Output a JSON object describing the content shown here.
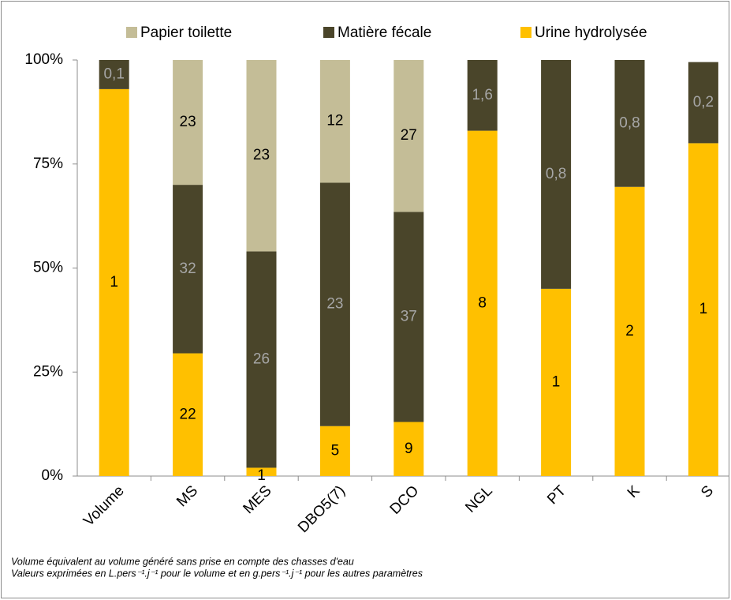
{
  "chart_data": {
    "type": "bar",
    "stacked": true,
    "categories": [
      "Volume",
      "MS",
      "MES",
      "DBO5(7)",
      "DCO",
      "NGL",
      "PT",
      "K",
      "S"
    ],
    "series": [
      {
        "name": "Papier toilette",
        "color": "#c4bd97",
        "label_color": "#000000",
        "values": [
          null,
          30,
          46,
          29.5,
          36.5,
          null,
          null,
          null,
          null
        ],
        "value_labels": [
          null,
          "23",
          "23",
          "12",
          "27",
          null,
          null,
          null,
          null
        ]
      },
      {
        "name": "Matière fécale",
        "color": "#4a452a",
        "label_color": "#a6a6a6",
        "values": [
          7,
          40.5,
          52,
          58.5,
          50.5,
          17,
          55,
          30.5,
          19.5
        ],
        "value_labels": [
          "0,1",
          "32",
          "26",
          "23",
          "37",
          "1,6",
          "0,8",
          "0,8",
          "0,2"
        ]
      },
      {
        "name": "Urine hydrolysée",
        "color": "#ffc000",
        "label_color": "#000000",
        "values": [
          93,
          29.5,
          2,
          12,
          13,
          83,
          45,
          69.5,
          80
        ],
        "value_labels": [
          "1",
          "22",
          "1",
          "5",
          "9",
          "8",
          "1",
          "2",
          "1"
        ]
      }
    ],
    "ylim": [
      0,
      100
    ],
    "yticks": [
      {
        "value": 0,
        "label": "0%"
      },
      {
        "value": 25,
        "label": "25%"
      },
      {
        "value": 50,
        "label": "50%"
      },
      {
        "value": 75,
        "label": "75%"
      },
      {
        "value": 100,
        "label": "100%"
      }
    ],
    "legend": "top",
    "notes": [
      "Volume équivalent au volume généré sans prise en compte des chasses d'eau",
      "Valeurs exprimées en L.pers⁻¹.j⁻¹ pour le volume et en g.pers⁻¹.j⁻¹ pour les autres paramètres"
    ]
  }
}
